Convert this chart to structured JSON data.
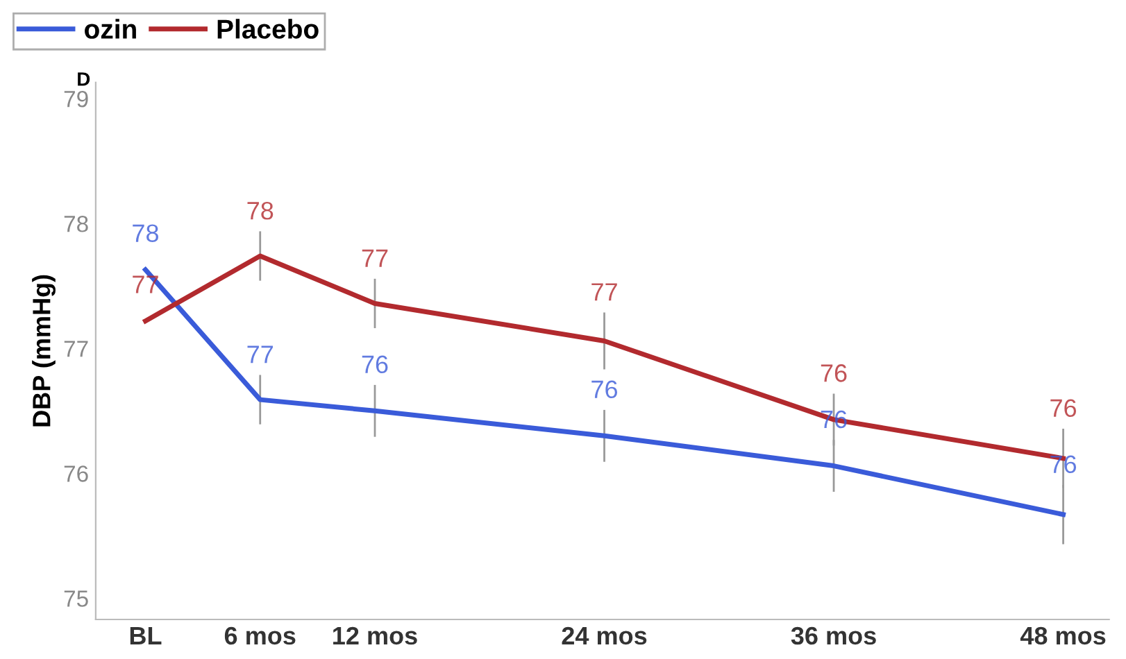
{
  "chart_data": {
    "type": "line",
    "ylabel": "DBP (mmHg)",
    "annotations": [
      "D"
    ],
    "x": [
      0,
      6,
      12,
      24,
      36,
      48
    ],
    "xlim": [
      -2.6,
      50.4
    ],
    "xticks": [
      {
        "value": 0,
        "label": "BL"
      },
      {
        "value": 6,
        "label": "6 mos"
      },
      {
        "value": 12,
        "label": "12 mos"
      },
      {
        "value": 24,
        "label": "24 mos"
      },
      {
        "value": 36,
        "label": "36 mos"
      },
      {
        "value": 48,
        "label": "48 mos"
      }
    ],
    "ylim": [
      74.83,
      79.13
    ],
    "yticks": [
      75,
      76,
      77,
      78,
      79
    ],
    "legend": "top left",
    "grid": false,
    "marker": "none",
    "line_style": "solid",
    "series": [
      {
        "name": "ozin",
        "color": "#3a5bd9",
        "values": [
          77.63,
          76.59,
          76.5,
          76.3,
          76.06,
          75.67
        ],
        "errors": [
          null,
          0.19,
          0.2,
          0.2,
          0.2,
          0.23
        ],
        "value_labels": [
          "78",
          "77",
          "76",
          "76",
          "76",
          "76"
        ]
      },
      {
        "name": "Placebo",
        "color": "#b22a2e",
        "values": [
          77.22,
          77.74,
          77.36,
          77.06,
          76.43,
          76.12
        ],
        "errors": [
          null,
          0.19,
          0.19,
          0.22,
          0.2,
          0.23
        ],
        "value_labels": [
          "77",
          "78",
          "77",
          "77",
          "76",
          "76"
        ]
      }
    ]
  }
}
